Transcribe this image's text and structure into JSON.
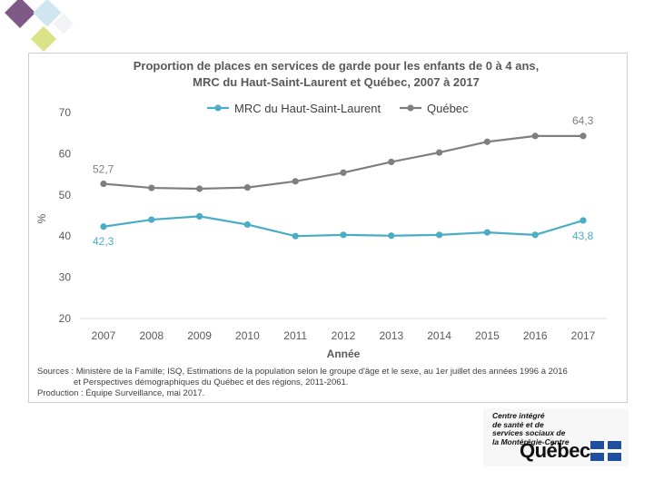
{
  "chart_data": {
    "type": "line",
    "title_line1": "Proportion de places en services de garde pour les enfants de 0 à 4 ans,",
    "title_line2": "MRC du Haut-Saint-Laurent et Québec, 2007 à 2017",
    "xlabel": "Année",
    "ylabel": "%",
    "x": [
      "2007",
      "2008",
      "2009",
      "2010",
      "2011",
      "2012",
      "2013",
      "2014",
      "2015",
      "2016",
      "2017"
    ],
    "ylim": [
      20,
      70
    ],
    "yticks": [
      20,
      30,
      40,
      50,
      60,
      70
    ],
    "grid": false,
    "legend_position": "top-center",
    "series": [
      {
        "name": "MRC du Haut-Saint-Laurent",
        "color": "#4bacc6",
        "values": [
          42.3,
          44.0,
          44.8,
          42.8,
          40.0,
          40.3,
          40.1,
          40.3,
          40.9,
          40.3,
          43.8
        ],
        "labels": {
          "first": "42,3",
          "last": "43,8"
        }
      },
      {
        "name": "Québec",
        "color": "#7f7f7f",
        "values": [
          52.7,
          51.7,
          51.5,
          51.8,
          53.3,
          55.4,
          58.0,
          60.3,
          62.9,
          64.3,
          64.3
        ],
        "labels": {
          "first": "52,7",
          "last": "64,3"
        }
      }
    ]
  },
  "footer": {
    "sources_line1": "Sources : Ministère de la Famille; ISQ, Estimations de la population selon le groupe d'âge et le sexe, au 1er juillet des années 1996 à 2016",
    "sources_line2": "et Perspectives démographiques du Québec et des régions, 2011-2061.",
    "production": "Production : Équipe Surveillance, mai 2017."
  },
  "logo": {
    "line1": "Centre intégré",
    "line2": "de santé et de",
    "line3": "services sociaux de",
    "line4": "la Montérégie-Centre",
    "wordmark": "Québec"
  }
}
